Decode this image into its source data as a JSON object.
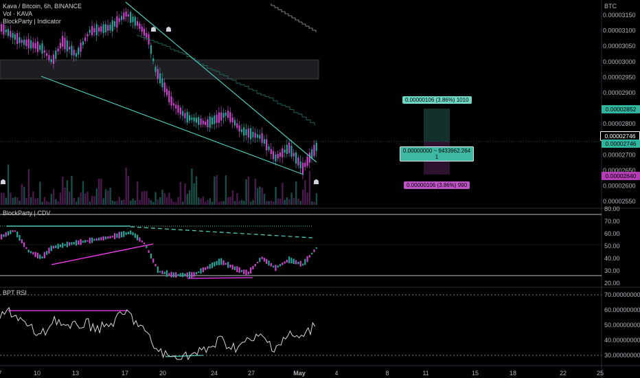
{
  "header": {
    "symbol_line": "Kava / Bitcoin, 6h, BINANCE",
    "vol_line": "Vol · KAVA",
    "indicator_line": "BlockParty | Indicator"
  },
  "price_axis": {
    "currency": "BTC",
    "ticks": [
      "0.00003150",
      "0.00003100",
      "0.00003050",
      "0.00003000",
      "0.00002950",
      "0.00002900",
      "0.00002850",
      "0.00002800",
      "0.00002750",
      "0.00002700",
      "0.00002650",
      "0.00002600",
      "0.00002550"
    ],
    "tags": [
      {
        "text": "0.00002852",
        "kind": "teal"
      },
      {
        "text": "0.00002746",
        "kind": "white"
      },
      {
        "text": "0.00002746",
        "kind": "teal"
      },
      {
        "text": "0.00002640",
        "kind": "pink"
      }
    ]
  },
  "position_tool": {
    "target_label": "0.00000106 (3.86%) 1010",
    "center_label_line1": "0.00000000 ~ 9433962.264",
    "center_label_line2": "1",
    "stop_label": "0.00000106 (3.86%) 990"
  },
  "cdv_panel": {
    "title": "BlockParty | CDV",
    "ticks": [
      "80.00",
      "70.00",
      "60.00",
      "50.00",
      "40.00",
      "30.00",
      "20.00"
    ]
  },
  "rsi_panel": {
    "title": "BPT RSI",
    "ticks": [
      "70.00000000",
      "60.00000000",
      "50.00000000",
      "40.00000000",
      "30.00000000"
    ]
  },
  "time_axis": {
    "labels": [
      "7",
      "10",
      "13",
      "17",
      "20",
      "24",
      "27",
      "May",
      "4",
      "8",
      "11",
      "15",
      "18",
      "22",
      "25"
    ]
  },
  "colors": {
    "bull": "#26a69a",
    "bear": "#cc44cc",
    "trend": "#4ec9b8",
    "pink": "#ff40ff",
    "teal_tag": "#2fb5a0",
    "pink_tag": "#b53db5"
  }
}
